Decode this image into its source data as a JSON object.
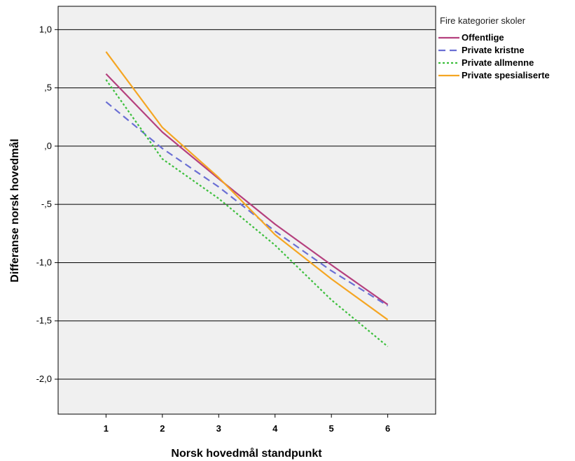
{
  "chart_data": {
    "type": "line",
    "xlabel": "Norsk hovedmål standpunkt",
    "ylabel": "Differanse norsk hovedmål",
    "x": [
      1,
      2,
      3,
      4,
      5,
      6
    ],
    "x_tick_labels": [
      "1",
      "2",
      "3",
      "4",
      "5",
      "6"
    ],
    "xlim": [
      0.15,
      6.85
    ],
    "ylim": [
      -2.3,
      1.2
    ],
    "y_ticks": [
      1.0,
      0.5,
      0.0,
      -0.5,
      -1.0,
      -1.5,
      -2.0
    ],
    "y_tick_labels": [
      "1,0",
      ",5",
      ",0",
      "-,5",
      "-1,0",
      "-1,5",
      "-2,0"
    ],
    "grid": "horizontal",
    "background": "#f0f0f0",
    "legend": {
      "title": "Fire kategorier skoler",
      "placement": "right-top"
    },
    "series": [
      {
        "name": "Offentlige",
        "color": "#b5407e",
        "dash": "solid",
        "values": [
          0.62,
          0.12,
          -0.28,
          -0.67,
          -1.02,
          -1.36
        ]
      },
      {
        "name": "Private kristne",
        "color": "#6b6fd4",
        "dash": "dashed",
        "values": [
          0.38,
          -0.02,
          -0.35,
          -0.73,
          -1.07,
          -1.37
        ]
      },
      {
        "name": "Private allmenne",
        "color": "#3dbf3d",
        "dash": "dotted",
        "values": [
          0.57,
          -0.11,
          -0.45,
          -0.85,
          -1.32,
          -1.72
        ]
      },
      {
        "name": "Private spesialiserte",
        "color": "#f5a623",
        "dash": "solid",
        "values": [
          0.81,
          0.16,
          -0.27,
          -0.76,
          -1.14,
          -1.49
        ]
      }
    ]
  }
}
